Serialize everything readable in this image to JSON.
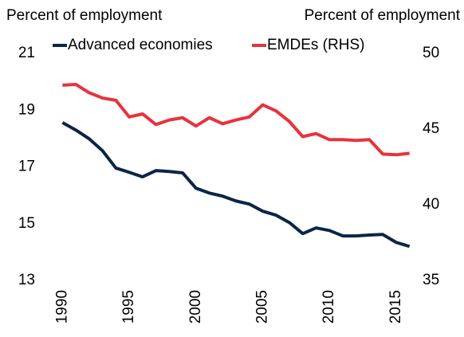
{
  "chart_data": {
    "type": "line",
    "ylabel": "Percent of employment",
    "y2label": "Percent of employment",
    "x": [
      1990,
      1991,
      1992,
      1993,
      1994,
      1995,
      1996,
      1997,
      1998,
      1999,
      2000,
      2001,
      2002,
      2003,
      2004,
      2005,
      2006,
      2007,
      2008,
      2009,
      2010,
      2011,
      2012,
      2013,
      2014,
      2015,
      2016
    ],
    "xlim": [
      1989.5,
      2016.5
    ],
    "xticks": [
      1990,
      1995,
      2000,
      2005,
      2010,
      2015
    ],
    "ylim": [
      13,
      21
    ],
    "yticks": [
      13,
      15,
      17,
      19,
      21
    ],
    "y2lim": [
      35,
      50
    ],
    "y2ticks": [
      35,
      40,
      45,
      50
    ],
    "grid": false,
    "legend": "top",
    "series": [
      {
        "name": "Advanced economies",
        "color": "#0b2545",
        "axis": "y",
        "values": [
          18.56,
          18.3,
          17.99,
          17.57,
          16.96,
          16.81,
          16.65,
          16.87,
          16.84,
          16.79,
          16.25,
          16.08,
          15.97,
          15.8,
          15.69,
          15.44,
          15.3,
          15.04,
          14.65,
          14.85,
          14.76,
          14.57,
          14.57,
          14.6,
          14.62,
          14.34,
          14.2
        ]
      },
      {
        "name": "EMDEs (RHS)",
        "color": "#e8323c",
        "axis": "y2",
        "values": [
          47.9,
          47.95,
          47.4,
          47.05,
          46.9,
          45.8,
          46.0,
          45.3,
          45.6,
          45.75,
          45.2,
          45.75,
          45.35,
          45.6,
          45.8,
          46.6,
          46.2,
          45.5,
          44.5,
          44.7,
          44.3,
          44.3,
          44.25,
          44.3,
          43.35,
          43.3,
          43.4
        ]
      }
    ]
  }
}
